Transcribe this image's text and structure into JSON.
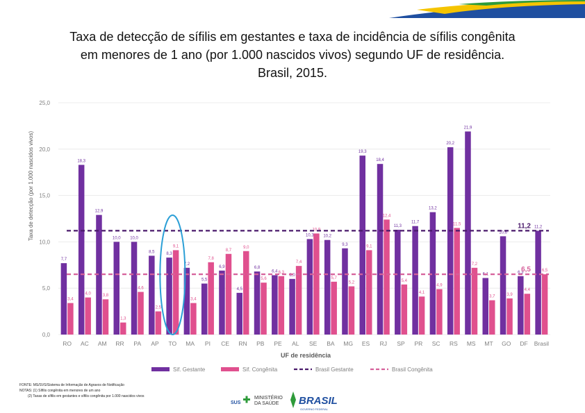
{
  "title": {
    "line1": "Taxa de detecção de sífilis em gestantes e taxa de incidência de sífilis congênita",
    "line2": "em menores de 1 ano (por 1.000 nascidos vivos) segundo UF de residência.",
    "line3": "Brasil, 2015."
  },
  "colors": {
    "gestante": "#7030a0",
    "congenita": "#e0508e",
    "brasil_gestante": "#4a1a6b",
    "brasil_congenita": "#d6609a",
    "highlight": "#2b9fd6",
    "grid": "#e6e6e6",
    "axis_text": "#7f7f7f"
  },
  "chart_data": {
    "type": "bar",
    "title": "",
    "xlabel": "UF de residência",
    "ylabel": "Taxa de detecção (por 1.000 nascidos vivos)",
    "ylim": [
      0,
      25
    ],
    "yticks": [
      "0,0",
      "5,0",
      "10,0",
      "15,0",
      "20,0",
      "25,0"
    ],
    "grid": true,
    "categories": [
      "RO",
      "AC",
      "AM",
      "RR",
      "PA",
      "AP",
      "TO",
      "MA",
      "PI",
      "CE",
      "RN",
      "PB",
      "PE",
      "AL",
      "SE",
      "BA",
      "MG",
      "ES",
      "RJ",
      "SP",
      "PR",
      "SC",
      "RS",
      "MS",
      "MT",
      "GO",
      "DF",
      "Brasil"
    ],
    "series": [
      {
        "name": "Sif. Gestante",
        "values": [
          7.7,
          18.3,
          12.9,
          10.0,
          10.0,
          8.5,
          8.3,
          7.2,
          5.5,
          6.9,
          4.5,
          6.8,
          6.4,
          6.0,
          10.3,
          10.2,
          9.3,
          19.3,
          18.4,
          11.3,
          11.7,
          13.2,
          20.2,
          21.9,
          6.1,
          10.6,
          6.3,
          11.2
        ],
        "labels": [
          "7,7",
          "18,3",
          "12,9",
          "10,0",
          "10,0",
          "8,5",
          "8,3",
          "7,2",
          "5,5",
          "6,9",
          "4,5",
          "6,8",
          "6,4",
          "6,0",
          "10,3",
          "10,2",
          "9,3",
          "19,3",
          "18,4",
          "11,3",
          "11,7",
          "13,2",
          "20,2",
          "21,9",
          "6,1",
          "10,6",
          "6,3",
          "11,2"
        ]
      },
      {
        "name": "Sif. Congênita",
        "values": [
          3.4,
          4.0,
          3.8,
          1.3,
          4.6,
          2.5,
          9.1,
          3.4,
          7.8,
          8.7,
          9.0,
          5.6,
          6.3,
          7.4,
          10.9,
          5.7,
          5.2,
          9.1,
          12.4,
          5.4,
          4.1,
          4.9,
          11.5,
          7.2,
          3.7,
          3.9,
          4.4,
          6.5
        ],
        "labels": [
          "3,4",
          "4,0",
          "3,8",
          "1,3",
          "4,6",
          "2,5",
          "9,1",
          "3,4",
          "7,8",
          "8,7",
          "9,0",
          "5,6",
          "6,3",
          "7,4",
          "10,9",
          "5,7",
          "5,2",
          "9,1",
          "12,4",
          "5,4",
          "4,1",
          "4,9",
          "11,5",
          "7,2",
          "3,7",
          "3,9",
          "4,4",
          "6,5"
        ]
      }
    ],
    "reference_lines": [
      {
        "name": "Brasil Gestante",
        "value": 11.2,
        "label": "11,2"
      },
      {
        "name": "Brasil Congênita",
        "value": 6.5,
        "label": "6,5"
      }
    ],
    "highlighted_category": "TO",
    "legend_position": "bottom"
  },
  "footer": {
    "fonte": "FONTE: MS/SVS/Sistema de Informação de Agravos de Notificação",
    "notas": "NOTAS: (1) Sífilis congênita em menores de um ano",
    "nota2": "(2) Taxas de sífilis em gestantes e sífilis congênita por 1.000 nascidos vivos"
  },
  "logos": {
    "sus": "SUS",
    "ministerio_line1": "MINISTÉRIO",
    "ministerio_line2": "DA SAÚDE",
    "brasil": "BRASIL",
    "brasil_sub": "GOVERNO FEDERAL"
  }
}
